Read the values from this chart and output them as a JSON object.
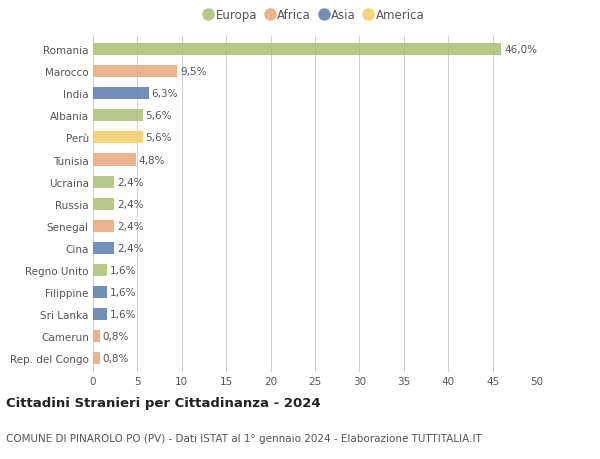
{
  "countries": [
    "Romania",
    "Marocco",
    "India",
    "Albania",
    "Perù",
    "Tunisia",
    "Ucraina",
    "Russia",
    "Senegal",
    "Cina",
    "Regno Unito",
    "Filippine",
    "Sri Lanka",
    "Camerun",
    "Rep. del Congo"
  ],
  "values": [
    46.0,
    9.5,
    6.3,
    5.6,
    5.6,
    4.8,
    2.4,
    2.4,
    2.4,
    2.4,
    1.6,
    1.6,
    1.6,
    0.8,
    0.8
  ],
  "labels": [
    "46,0%",
    "9,5%",
    "6,3%",
    "5,6%",
    "5,6%",
    "4,8%",
    "2,4%",
    "2,4%",
    "2,4%",
    "2,4%",
    "1,6%",
    "1,6%",
    "1,6%",
    "0,8%",
    "0,8%"
  ],
  "continents": [
    "Europa",
    "Africa",
    "Asia",
    "Europa",
    "America",
    "Africa",
    "Europa",
    "Europa",
    "Africa",
    "Asia",
    "Europa",
    "Asia",
    "Asia",
    "Africa",
    "Africa"
  ],
  "colors": {
    "Europa": "#adc178",
    "Africa": "#e8a97e",
    "Asia": "#6080b0",
    "America": "#f2ce6b"
  },
  "xlim": [
    0,
    50
  ],
  "xticks": [
    0,
    5,
    10,
    15,
    20,
    25,
    30,
    35,
    40,
    45,
    50
  ],
  "title": "Cittadini Stranieri per Cittadinanza - 2024",
  "subtitle": "COMUNE DI PINAROLO PO (PV) - Dati ISTAT al 1° gennaio 2024 - Elaborazione TUTTITALIA.IT",
  "background_color": "#ffffff",
  "grid_color": "#d0d0d0",
  "bar_height": 0.55,
  "label_fontsize": 7.5,
  "tick_fontsize": 7.5,
  "title_fontsize": 9.5,
  "subtitle_fontsize": 7.5,
  "legend_order": [
    "Europa",
    "Africa",
    "Asia",
    "America"
  ]
}
